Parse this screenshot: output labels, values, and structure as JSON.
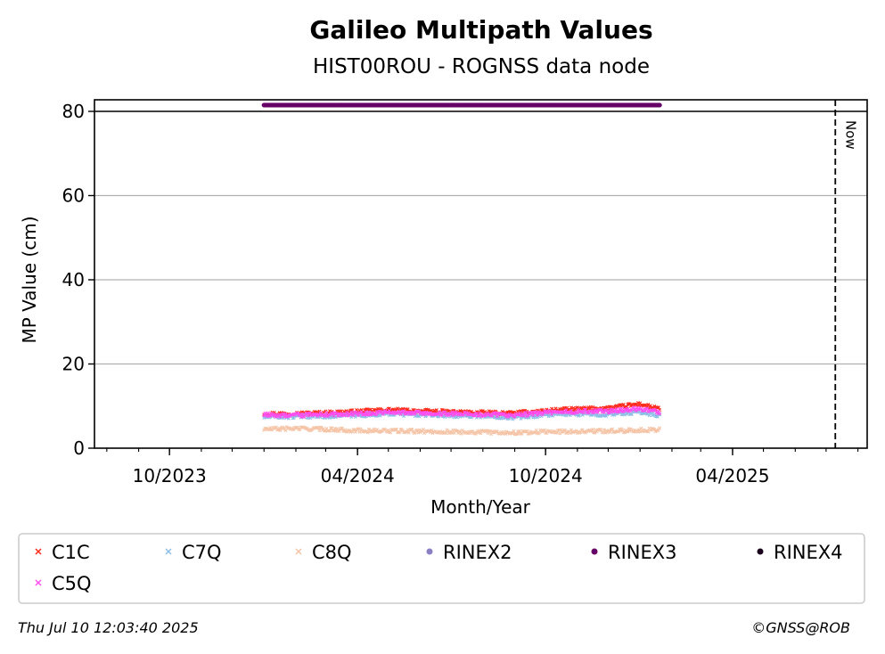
{
  "chart_data": {
    "type": "scatter",
    "title": "Galileo Multipath Values",
    "subtitle": "HIST00ROU - ROGNSS data node",
    "xlabel": "Month/Year",
    "ylabel": "MP Value (cm)",
    "ylim": [
      0,
      80
    ],
    "y_ticks": [
      0,
      20,
      40,
      60,
      80
    ],
    "xlim": [
      "2023-07-20",
      "2025-08-10"
    ],
    "x_ticks": [
      {
        "date": "2023-10-01",
        "label": "10/2023"
      },
      {
        "date": "2024-04-01",
        "label": "04/2024"
      },
      {
        "date": "2024-10-01",
        "label": "10/2024"
      },
      {
        "date": "2025-04-01",
        "label": "04/2025"
      }
    ],
    "grid": "horizontal",
    "now_marker": {
      "date": "2025-07-10",
      "label": "Now"
    },
    "legend_position": "below",
    "series": [
      {
        "name": "C1C",
        "color": "#ff2a1a",
        "marker": "x",
        "points": [
          [
            "2024-01-01",
            8.2
          ],
          [
            "2024-02-01",
            8.2
          ],
          [
            "2024-03-01",
            8.4
          ],
          [
            "2024-04-01",
            8.7
          ],
          [
            "2024-05-01",
            9.1
          ],
          [
            "2024-06-01",
            8.8
          ],
          [
            "2024-07-01",
            8.6
          ],
          [
            "2024-08-01",
            8.4
          ],
          [
            "2024-09-01",
            8.3
          ],
          [
            "2024-10-01",
            8.9
          ],
          [
            "2024-11-01",
            9.3
          ],
          [
            "2024-12-01",
            9.5
          ],
          [
            "2025-01-01",
            10.5
          ],
          [
            "2025-01-20",
            9.2
          ]
        ]
      },
      {
        "name": "C7Q",
        "color": "#8cbfe6",
        "marker": "x",
        "points": [
          [
            "2024-01-01",
            7.4
          ],
          [
            "2024-02-01",
            7.5
          ],
          [
            "2024-03-01",
            7.6
          ],
          [
            "2024-04-01",
            7.8
          ],
          [
            "2024-05-01",
            8.2
          ],
          [
            "2024-06-01",
            7.9
          ],
          [
            "2024-07-01",
            7.8
          ],
          [
            "2024-08-01",
            7.6
          ],
          [
            "2024-09-01",
            7.3
          ],
          [
            "2024-10-01",
            7.9
          ],
          [
            "2024-11-01",
            8.1
          ],
          [
            "2024-12-01",
            8.0
          ],
          [
            "2025-01-01",
            8.6
          ],
          [
            "2025-01-20",
            7.8
          ]
        ]
      },
      {
        "name": "C8Q",
        "color": "#f5c4a6",
        "marker": "x",
        "points": [
          [
            "2024-01-01",
            4.5
          ],
          [
            "2024-02-01",
            4.7
          ],
          [
            "2024-03-01",
            4.5
          ],
          [
            "2024-04-01",
            4.2
          ],
          [
            "2024-05-01",
            4.1
          ],
          [
            "2024-06-01",
            4.0
          ],
          [
            "2024-07-01",
            3.9
          ],
          [
            "2024-08-01",
            3.8
          ],
          [
            "2024-09-01",
            3.7
          ],
          [
            "2024-10-01",
            3.9
          ],
          [
            "2024-11-01",
            4.0
          ],
          [
            "2024-12-01",
            4.1
          ],
          [
            "2025-01-01",
            4.3
          ],
          [
            "2025-01-20",
            4.4
          ]
        ]
      },
      {
        "name": "RINEX2",
        "color": "#8a7fc4",
        "marker": "dot",
        "points": []
      },
      {
        "name": "RINEX3",
        "color": "#660066",
        "marker": "dot",
        "points": [
          [
            "2024-01-01",
            81.5
          ],
          [
            "2024-02-01",
            81.5
          ],
          [
            "2024-03-01",
            81.5
          ],
          [
            "2024-04-01",
            81.5
          ],
          [
            "2024-05-01",
            81.5
          ],
          [
            "2024-06-01",
            81.5
          ],
          [
            "2024-07-01",
            81.5
          ],
          [
            "2024-08-01",
            81.5
          ],
          [
            "2024-09-01",
            81.5
          ],
          [
            "2024-10-01",
            81.5
          ],
          [
            "2024-11-01",
            81.5
          ],
          [
            "2024-12-01",
            81.5
          ],
          [
            "2025-01-01",
            81.5
          ],
          [
            "2025-01-20",
            81.5
          ]
        ]
      },
      {
        "name": "RINEX4",
        "color": "#1a001a",
        "marker": "dot",
        "points": []
      },
      {
        "name": "C5Q",
        "color": "#ff4df0",
        "marker": "x",
        "points": [
          [
            "2024-01-01",
            7.9
          ],
          [
            "2024-02-01",
            7.8
          ],
          [
            "2024-03-01",
            8.0
          ],
          [
            "2024-04-01",
            8.2
          ],
          [
            "2024-05-01",
            8.5
          ],
          [
            "2024-06-01",
            8.3
          ],
          [
            "2024-07-01",
            8.2
          ],
          [
            "2024-08-01",
            8.0
          ],
          [
            "2024-09-01",
            7.8
          ],
          [
            "2024-10-01",
            8.4
          ],
          [
            "2024-11-01",
            8.7
          ],
          [
            "2024-12-01",
            8.8
          ],
          [
            "2025-01-01",
            9.4
          ],
          [
            "2025-01-20",
            8.6
          ]
        ]
      }
    ]
  },
  "footer": {
    "timestamp": "Thu Jul 10 12:03:40 2025",
    "copyright": "©GNSS@ROB"
  }
}
